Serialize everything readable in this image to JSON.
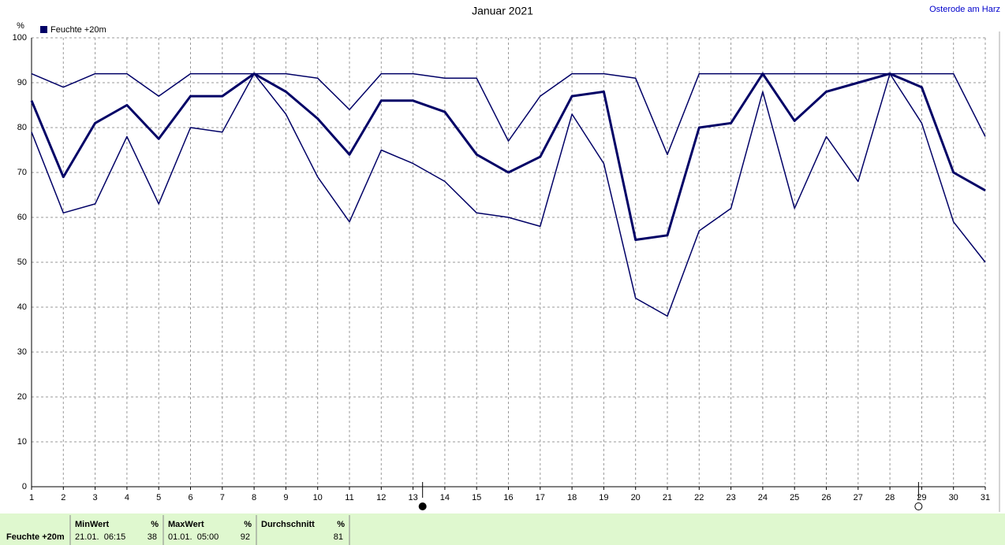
{
  "chart_data": {
    "type": "line",
    "title": "Januar 2021",
    "location": "Osterode am Harz",
    "y_unit": "%",
    "x": [
      1,
      2,
      3,
      4,
      5,
      6,
      7,
      8,
      9,
      10,
      11,
      12,
      13,
      14,
      15,
      16,
      17,
      18,
      19,
      20,
      21,
      22,
      23,
      24,
      25,
      26,
      27,
      28,
      29,
      30,
      31
    ],
    "series": [
      {
        "name": "Feuchte +20m",
        "color": "#000066",
        "values": [
          86,
          69,
          81,
          85,
          77.5,
          87,
          87,
          92,
          88,
          82,
          74,
          86,
          86,
          83.5,
          74,
          70,
          73.5,
          87,
          88,
          55,
          56,
          80,
          81,
          92,
          81.5,
          88,
          90,
          92,
          89,
          70,
          66
        ]
      },
      {
        "color": "#000066",
        "values": [
          92,
          89,
          92,
          92,
          87,
          92,
          92,
          92,
          92,
          91,
          84,
          92,
          92,
          91,
          91,
          77,
          87,
          92,
          92,
          91,
          74,
          92,
          92,
          92,
          92,
          92,
          92,
          92,
          92,
          92,
          78
        ]
      },
      {
        "color": "#000066",
        "values": [
          79,
          61,
          63,
          78,
          63,
          80,
          79,
          92,
          83,
          69,
          59,
          75,
          72,
          68,
          61,
          60,
          58,
          83,
          72,
          42,
          38,
          57,
          62,
          88,
          62,
          78,
          68,
          92,
          81,
          59,
          50
        ]
      }
    ],
    "xlim": [
      1,
      31
    ],
    "xticks": [
      1,
      2,
      3,
      4,
      5,
      6,
      7,
      8,
      9,
      10,
      11,
      12,
      13,
      14,
      15,
      16,
      17,
      18,
      19,
      20,
      21,
      22,
      23,
      24,
      25,
      26,
      27,
      28,
      29,
      30,
      31
    ],
    "ylim": [
      0,
      100
    ],
    "yticks": [
      0,
      10,
      20,
      30,
      40,
      50,
      60,
      70,
      80,
      90,
      100
    ],
    "grid": true,
    "moon_phases": [
      {
        "x": 13.3,
        "filled": true
      },
      {
        "x": 28.9,
        "filled": false
      }
    ]
  },
  "summary": {
    "label": "Feuchte +20m",
    "columns": [
      {
        "header": "MinWert",
        "unit": "%",
        "when": "21.01.  06:15",
        "value": "38"
      },
      {
        "header": "MaxWert",
        "unit": "%",
        "when": "01.01.  05:00",
        "value": "92"
      },
      {
        "header": "Durchschnitt",
        "unit": "%",
        "when": "",
        "value": "81"
      }
    ]
  }
}
